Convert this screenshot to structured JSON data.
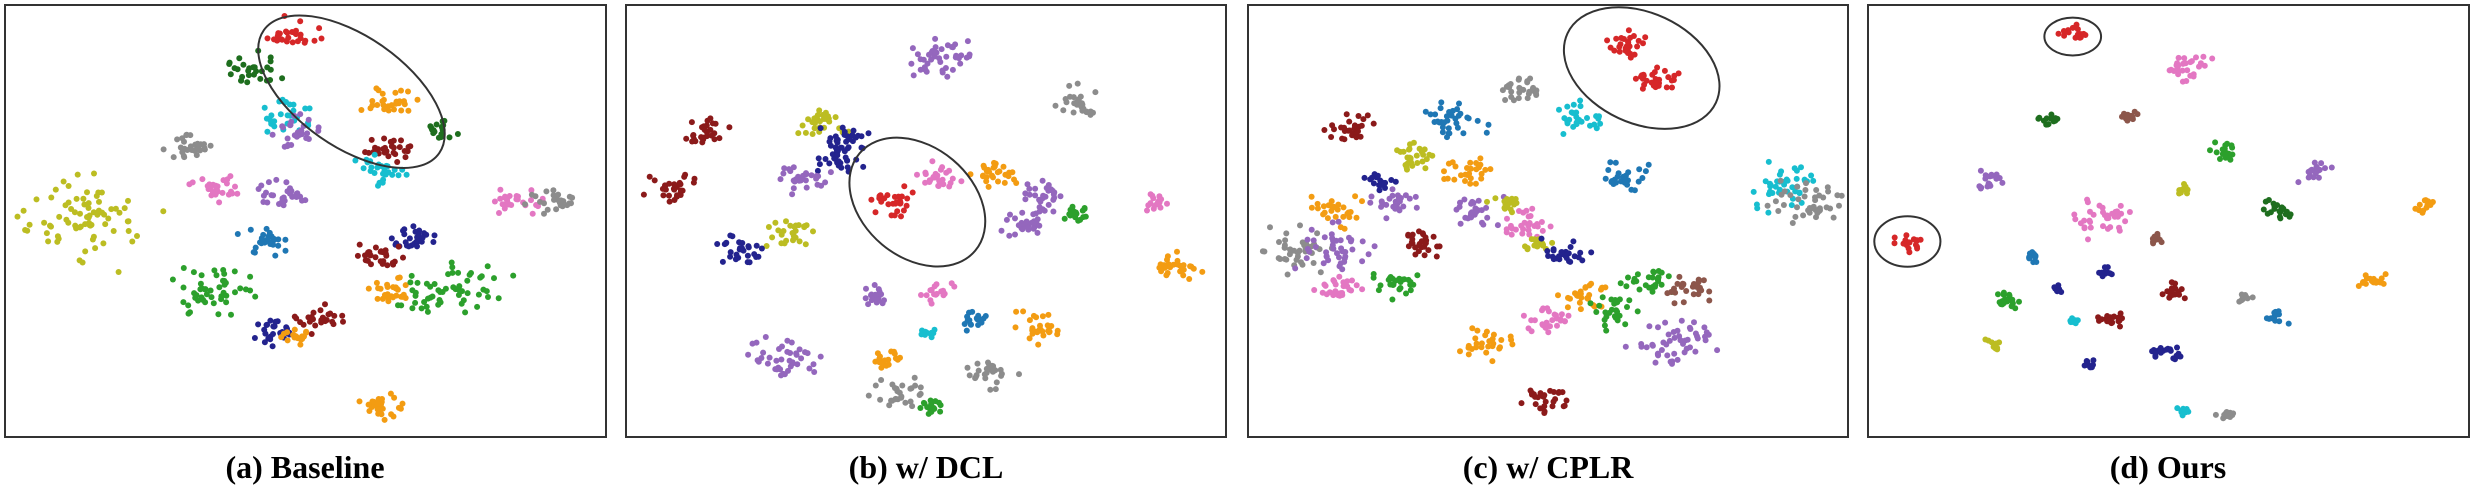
{
  "panels": [
    {
      "caption": "(a) Baseline"
    },
    {
      "caption": "(b) w/ DCL"
    },
    {
      "caption": "(c) w/ CPLR"
    },
    {
      "caption": "(d) Ours"
    }
  ]
}
